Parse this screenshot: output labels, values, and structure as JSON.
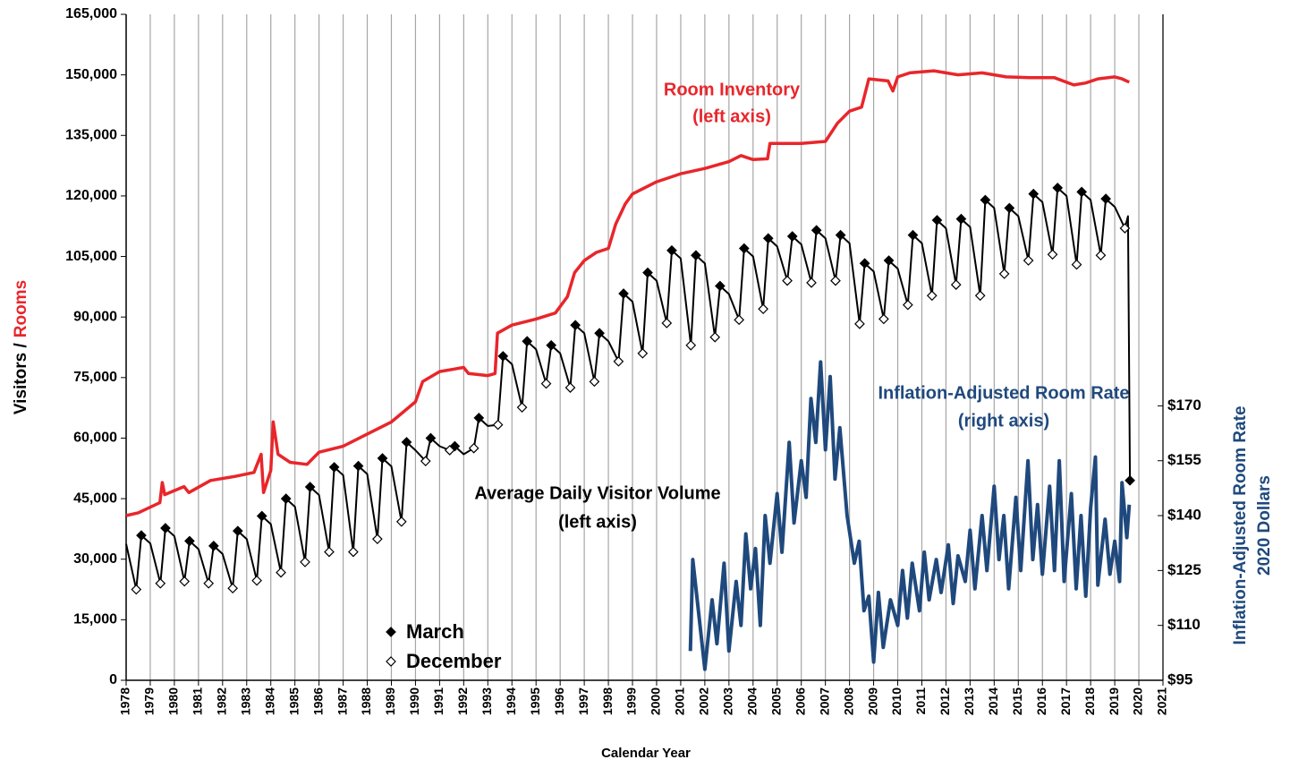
{
  "chart_data": {
    "type": "line",
    "x_label": "Calendar Year",
    "y_label": [
      "Visitors /",
      "Rooms"
    ],
    "y_label_colors": [
      "#000000",
      "#e8262b"
    ],
    "y2_label": [
      "Inflation-Adjusted Room Rate",
      "2020 Dollars"
    ],
    "y2_label_color": "#1f497d",
    "xlim": [
      1978,
      2021
    ],
    "xticks": [
      1978,
      1979,
      1980,
      1981,
      1982,
      1983,
      1984,
      1985,
      1986,
      1987,
      1988,
      1989,
      1990,
      1991,
      1992,
      1993,
      1994,
      1995,
      1996,
      1997,
      1998,
      1999,
      2000,
      2001,
      2002,
      2003,
      2004,
      2005,
      2006,
      2007,
      2008,
      2009,
      2010,
      2011,
      2012,
      2013,
      2014,
      2015,
      2016,
      2017,
      2018,
      2019,
      2020,
      2021
    ],
    "ylim": [
      0,
      165000
    ],
    "yticks": [
      0,
      {
        "value": 15000,
        "label": "15,000"
      },
      {
        "value": 30000,
        "label": "30,000"
      },
      {
        "value": 45000,
        "label": "45,000"
      },
      {
        "value": 60000,
        "label": "60,000"
      },
      {
        "value": 75000,
        "label": "75,000"
      },
      {
        "value": 90000,
        "label": "90,000"
      },
      {
        "value": 105000,
        "label": "105,000"
      },
      {
        "value": 120000,
        "label": "120,000"
      },
      {
        "value": 135000,
        "label": "135,000"
      },
      {
        "value": 150000,
        "label": "150,000"
      },
      {
        "value": 165000,
        "label": "165,000"
      }
    ],
    "y2lim": [
      95,
      277
    ],
    "y2ticks": [
      {
        "value": 95,
        "label": "$95"
      },
      {
        "value": 110,
        "label": "$110"
      },
      {
        "value": 125,
        "label": "$125"
      },
      {
        "value": 140,
        "label": "$140"
      },
      {
        "value": 155,
        "label": "$155"
      },
      {
        "value": 170,
        "label": "$170"
      }
    ],
    "grid": true,
    "series": [
      {
        "type": "line",
        "label": [
          "Room Inventory",
          "(left axis)"
        ],
        "color": "#e8262b",
        "width": 3.5,
        "x": [
          1978.0,
          1978.5,
          1979.4,
          1979.5,
          1979.6,
          1980.4,
          1980.6,
          1981.5,
          1982.5,
          1983.3,
          1983.6,
          1983.7,
          1984.0,
          1984.1,
          1984.3,
          1984.8,
          1985.5,
          1986.0,
          1987.0,
          1988.0,
          1989.0,
          1989.6,
          1990.0,
          1990.3,
          1991.0,
          1992.0,
          1992.2,
          1993.0,
          1993.3,
          1993.4,
          1994.0,
          1995.0,
          1995.8,
          1996.3,
          1996.6,
          1997.0,
          1997.5,
          1998.0,
          1998.3,
          1998.7,
          1999.0,
          2000.0,
          2000.5,
          2001.0,
          2002.0,
          2003.0,
          2003.5,
          2004.0,
          2004.6,
          2004.7,
          2005.5,
          2006.0,
          2007.0,
          2007.5,
          2008.0,
          2008.5,
          2008.8,
          2009.6,
          2009.8,
          2010.0,
          2010.5,
          2011.5,
          2012.5,
          2013.5,
          2014.5,
          2015.5,
          2016.5,
          2017.3,
          2017.8,
          2018.3,
          2019.0,
          2019.3,
          2019.6
        ],
        "values": [
          40800,
          41500,
          44000,
          49000,
          46000,
          48000,
          46500,
          49500,
          50500,
          51500,
          56000,
          46500,
          52000,
          64000,
          56000,
          54000,
          53500,
          56500,
          58000,
          61000,
          64000,
          67000,
          69000,
          74000,
          76500,
          77500,
          76000,
          75500,
          76000,
          86000,
          88000,
          89500,
          91000,
          95000,
          101000,
          104000,
          106000,
          107000,
          113000,
          118000,
          120500,
          123500,
          124500,
          125500,
          126800,
          128500,
          130000,
          129000,
          129200,
          133000,
          133000,
          133000,
          133500,
          138000,
          141000,
          142000,
          149000,
          148500,
          146000,
          149500,
          150500,
          151000,
          150000,
          150500,
          149500,
          149300,
          149300,
          147500,
          148000,
          149000,
          149500,
          149000,
          148200
        ]
      },
      {
        "type": "line",
        "label": [
          "Average Daily Visitor Volume",
          "(left axis)"
        ],
        "color": "#000000",
        "width": 2,
        "x": [
          1978.0,
          1978.42,
          1978.63,
          1979.0,
          1979.42,
          1979.63,
          1980.0,
          1980.42,
          1980.63,
          1981.0,
          1981.42,
          1981.63,
          1982.0,
          1982.42,
          1982.63,
          1983.0,
          1983.42,
          1983.63,
          1984.0,
          1984.42,
          1984.63,
          1985.0,
          1985.42,
          1985.63,
          1986.0,
          1986.42,
          1986.63,
          1987.0,
          1987.42,
          1987.63,
          1988.0,
          1988.42,
          1988.63,
          1989.0,
          1989.42,
          1989.63,
          1990.0,
          1990.42,
          1990.63,
          1991.0,
          1991.42,
          1991.63,
          1992.0,
          1992.42,
          1992.63,
          1993.0,
          1993.42,
          1993.63,
          1994.0,
          1994.42,
          1994.63,
          1995.0,
          1995.42,
          1995.63,
          1996.0,
          1996.42,
          1996.63,
          1997.0,
          1997.42,
          1997.63,
          1998.0,
          1998.42,
          1998.63,
          1999.0,
          1999.42,
          1999.63,
          2000.0,
          2000.42,
          2000.63,
          2001.0,
          2001.42,
          2001.63,
          2002.0,
          2002.42,
          2002.63,
          2003.0,
          2003.42,
          2003.63,
          2004.0,
          2004.42,
          2004.63,
          2005.0,
          2005.42,
          2005.63,
          2006.0,
          2006.42,
          2006.63,
          2007.0,
          2007.42,
          2007.63,
          2008.0,
          2008.42,
          2008.63,
          2009.0,
          2009.42,
          2009.63,
          2010.0,
          2010.42,
          2010.63,
          2011.0,
          2011.42,
          2011.63,
          2012.0,
          2012.42,
          2012.63,
          2013.0,
          2013.42,
          2013.63,
          2014.0,
          2014.42,
          2014.63,
          2015.0,
          2015.42,
          2015.63,
          2016.0,
          2016.42,
          2016.63,
          2017.0,
          2017.42,
          2017.63,
          2018.0,
          2018.42,
          2018.63,
          2019.0,
          2019.42,
          2019.55,
          2019.63
        ],
        "values": [
          33800,
          22500,
          35900,
          33900,
          24000,
          37700,
          35700,
          24500,
          34500,
          32500,
          24000,
          33300,
          31300,
          22800,
          37000,
          35000,
          24700,
          40700,
          38700,
          26700,
          45000,
          43000,
          29300,
          47900,
          45900,
          31800,
          52800,
          50800,
          31800,
          53100,
          51100,
          35000,
          55000,
          53000,
          39300,
          59000,
          57000,
          54300,
          60000,
          58000,
          57000,
          58000,
          56000,
          57500,
          65000,
          63000,
          63300,
          80300,
          78300,
          67600,
          84000,
          82000,
          73500,
          83000,
          81000,
          72500,
          88000,
          86000,
          74000,
          86000,
          84000,
          79000,
          95800,
          93800,
          81000,
          101000,
          99000,
          88500,
          106500,
          104500,
          83000,
          105300,
          103300,
          85000,
          97700,
          95700,
          89300,
          107000,
          105000,
          92000,
          109500,
          107500,
          99000,
          110000,
          108000,
          98500,
          111500,
          109500,
          99000,
          110300,
          108300,
          88300,
          103300,
          101300,
          89500,
          104000,
          102000,
          93000,
          110300,
          108300,
          95300,
          114000,
          112000,
          98000,
          114300,
          112300,
          95300,
          119000,
          117000,
          100700,
          117000,
          115000,
          104000,
          120500,
          118500,
          105500,
          122000,
          120000,
          103000,
          121000,
          119000,
          105300,
          119300,
          117300,
          112000,
          115000,
          49500
        ]
      },
      {
        "type": "line",
        "axis": "y2",
        "label": [
          "Inflation-Adjusted Room Rate",
          "(right axis)"
        ],
        "color": "#1f497d",
        "width": 4,
        "x": [
          2001.4,
          2001.5,
          2001.8,
          2002.0,
          2002.3,
          2002.5,
          2002.8,
          2003.0,
          2003.3,
          2003.5,
          2003.7,
          2003.9,
          2004.1,
          2004.3,
          2004.5,
          2004.7,
          2005.0,
          2005.2,
          2005.5,
          2005.7,
          2006.0,
          2006.2,
          2006.4,
          2006.6,
          2006.8,
          2007.0,
          2007.2,
          2007.4,
          2007.6,
          2007.9,
          2008.2,
          2008.4,
          2008.6,
          2008.8,
          2009.0,
          2009.2,
          2009.4,
          2009.7,
          2010.0,
          2010.2,
          2010.4,
          2010.6,
          2010.9,
          2011.1,
          2011.3,
          2011.6,
          2011.8,
          2012.1,
          2012.3,
          2012.5,
          2012.8,
          2013.0,
          2013.2,
          2013.5,
          2013.7,
          2014.0,
          2014.2,
          2014.4,
          2014.6,
          2014.9,
          2015.1,
          2015.4,
          2015.6,
          2015.8,
          2016.0,
          2016.3,
          2016.5,
          2016.7,
          2016.9,
          2017.2,
          2017.4,
          2017.6,
          2017.8,
          2018.0,
          2018.2,
          2018.3,
          2018.6,
          2018.8,
          2019.0,
          2019.2,
          2019.3,
          2019.5,
          2019.6
        ],
        "values": [
          103,
          128,
          110,
          98,
          117,
          105,
          127,
          103,
          122,
          110,
          135,
          120,
          131,
          110,
          140,
          127,
          146,
          130,
          160,
          138,
          155,
          145,
          172,
          160,
          182,
          158,
          178,
          150,
          164,
          140,
          127,
          133,
          114,
          118,
          100,
          119,
          104,
          117,
          110,
          125,
          112,
          127,
          114,
          130,
          117,
          128,
          119,
          132,
          116,
          129,
          122,
          136,
          120,
          140,
          125,
          148,
          128,
          140,
          120,
          145,
          125,
          155,
          128,
          143,
          124,
          148,
          125,
          155,
          122,
          146,
          120,
          140,
          118,
          142,
          156,
          121,
          139,
          124,
          133,
          122,
          149,
          134,
          143
        ]
      },
      {
        "type": "scatter",
        "name": "March",
        "marker": "diamond",
        "filled": true,
        "color": "#000000",
        "x": [
          1978.63,
          1979.63,
          1980.63,
          1981.63,
          1982.63,
          1983.63,
          1984.63,
          1985.63,
          1986.63,
          1987.63,
          1988.63,
          1989.63,
          1990.63,
          1991.63,
          1992.63,
          1993.63,
          1994.63,
          1995.63,
          1996.63,
          1997.63,
          1998.63,
          1999.63,
          2000.63,
          2001.63,
          2002.63,
          2003.63,
          2004.63,
          2005.63,
          2006.63,
          2007.63,
          2008.63,
          2009.63,
          2010.63,
          2011.63,
          2012.63,
          2013.63,
          2014.63,
          2015.63,
          2016.63,
          2017.63,
          2018.63,
          2019.63
        ],
        "values": [
          35900,
          37700,
          34500,
          33300,
          37000,
          40700,
          45000,
          47900,
          52800,
          53100,
          55000,
          59000,
          60000,
          58000,
          65000,
          80300,
          84000,
          83000,
          88000,
          86000,
          95800,
          101000,
          106500,
          105300,
          97700,
          107000,
          109500,
          110000,
          111500,
          110300,
          103300,
          104000,
          110300,
          114000,
          114300,
          119000,
          117000,
          120500,
          122000,
          121000,
          119300,
          49500
        ]
      },
      {
        "type": "scatter",
        "name": "December",
        "marker": "diamond",
        "filled": false,
        "color": "#000000",
        "x": [
          1978.42,
          1979.42,
          1980.42,
          1981.42,
          1982.42,
          1983.42,
          1984.42,
          1985.42,
          1986.42,
          1987.42,
          1988.42,
          1989.42,
          1990.42,
          1991.42,
          1992.42,
          1993.42,
          1994.42,
          1995.42,
          1996.42,
          1997.42,
          1998.42,
          1999.42,
          2000.42,
          2001.42,
          2002.42,
          2003.42,
          2004.42,
          2005.42,
          2006.42,
          2007.42,
          2008.42,
          2009.42,
          2010.42,
          2011.42,
          2012.42,
          2013.42,
          2014.42,
          2015.42,
          2016.42,
          2017.42,
          2018.42,
          2019.42
        ],
        "values": [
          22500,
          24000,
          24500,
          24000,
          22800,
          24700,
          26700,
          29300,
          31800,
          31800,
          35000,
          39300,
          54300,
          57000,
          57500,
          63300,
          67600,
          73500,
          72500,
          74000,
          79000,
          81000,
          88500,
          83000,
          85000,
          89300,
          92000,
          99000,
          98500,
          99000,
          88300,
          89500,
          93000,
          95300,
          98000,
          95300,
          100700,
          104000,
          105500,
          103000,
          105300,
          112000
        ]
      }
    ]
  }
}
